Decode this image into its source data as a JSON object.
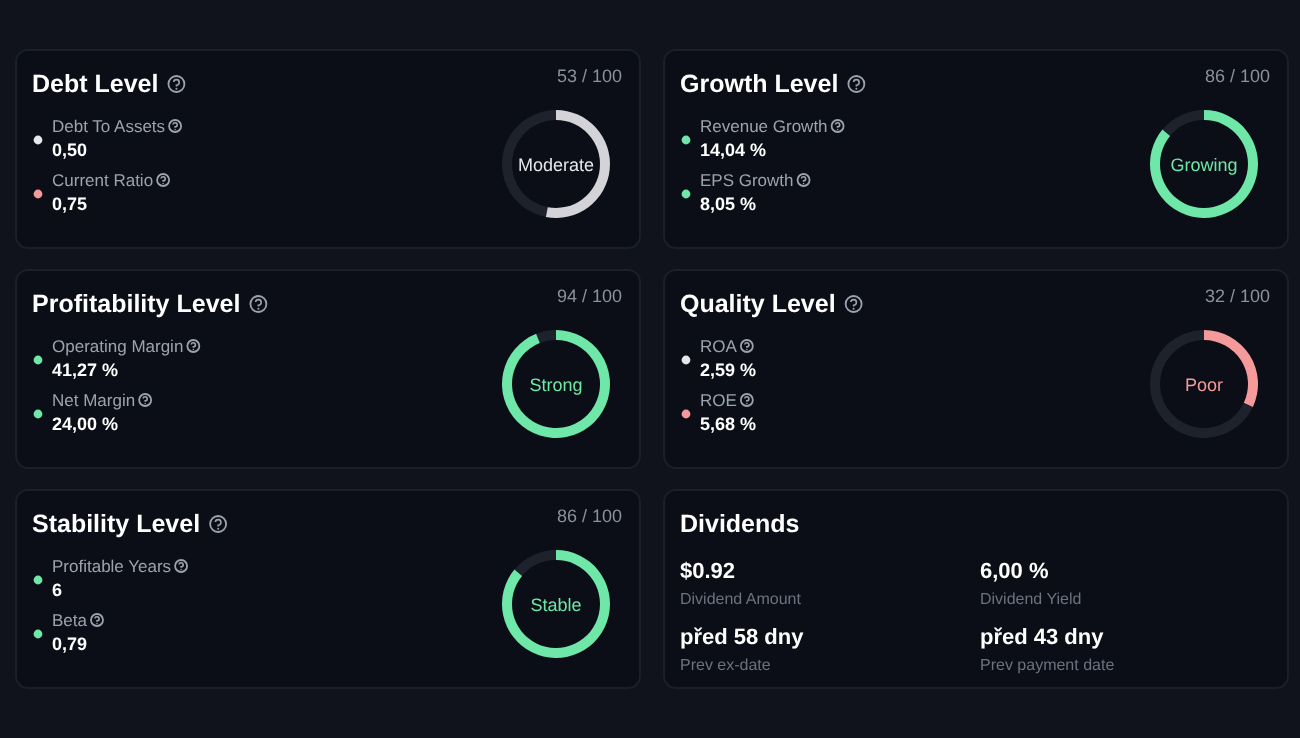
{
  "chart_data": [
    {
      "type": "donut",
      "title": "Debt Level",
      "subtitle": "53 / 100",
      "categories": [
        null,
        null
      ],
      "values": [
        53,
        47
      ],
      "colors": [
        "#d4d4d8",
        "#1e222c"
      ],
      "annotations": [
        "Debt To Assets",
        "0,50",
        "Current Ratio",
        "0,75",
        "Moderate"
      ]
    },
    {
      "type": "donut",
      "title": "Growth Level",
      "subtitle": "86 / 100",
      "categories": [
        null,
        null
      ],
      "values": [
        86,
        14
      ],
      "colors": [
        "#6ee7a8",
        "#1e222c"
      ],
      "annotations": [
        "Revenue Growth",
        "14,04 %",
        "EPS Growth",
        "8,05 %",
        "Growing"
      ]
    },
    {
      "type": "donut",
      "title": "Profitability Level",
      "subtitle": "94 / 100",
      "categories": [
        null,
        null
      ],
      "values": [
        94,
        6
      ],
      "colors": [
        "#6ee7a8",
        "#1e222c"
      ],
      "annotations": [
        "Operating Margin",
        "41,27 %",
        "Net Margin",
        "24,00 %",
        "Strong"
      ]
    },
    {
      "type": "donut",
      "title": "Quality Level",
      "subtitle": "32 / 100",
      "categories": [
        null,
        null
      ],
      "values": [
        32,
        68
      ],
      "colors": [
        "#f59a9a",
        "#1e222c"
      ],
      "annotations": [
        "ROA",
        "2,59 %",
        "ROE",
        "5,68 %",
        "Poor"
      ]
    },
    {
      "type": "donut",
      "title": "Stability Level",
      "subtitle": "86 / 100",
      "categories": [
        null,
        null
      ],
      "values": [
        86,
        14
      ],
      "colors": [
        "#6ee7a8",
        "#1e222c"
      ],
      "annotations": [
        "Profitable Years",
        "6",
        "Beta",
        "0,79",
        "Stable"
      ]
    },
    {
      "type": "other",
      "title": "Dividends",
      "annotations": [
        "$0.92",
        "Dividend Amount",
        "6,00 %",
        "Dividend Yield",
        "před 58 dny",
        "Prev ex-date",
        "před 43 dny",
        "Prev payment date"
      ]
    }
  ]
}
